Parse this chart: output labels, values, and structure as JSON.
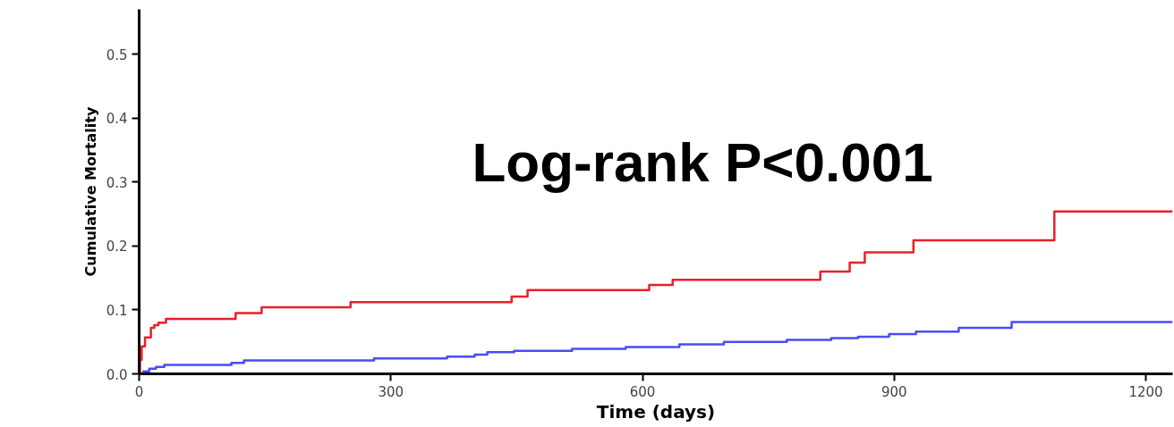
{
  "chart_data": {
    "type": "step",
    "xlabel": "Time (days)",
    "ylabel": "Cumulative Mortality",
    "annotations": [
      "Log-rank P<0.001"
    ],
    "xlim": [
      0,
      1232
    ],
    "ylim": [
      0,
      0.57
    ],
    "xticks": [
      0,
      300,
      600,
      900,
      1200
    ],
    "yticks": [
      {
        "value": 0,
        "label": "0.0"
      },
      {
        "value": 0.1,
        "label": "0.1"
      },
      {
        "value": 0.2,
        "label": "0.2"
      },
      {
        "value": 0.3,
        "label": "0.3"
      },
      {
        "value": 0.4,
        "label": "0.4"
      },
      {
        "value": 0.5,
        "label": "0.5"
      }
    ],
    "grid": false,
    "series": [
      {
        "color": "#e8202a",
        "x": [
          0,
          1,
          3,
          7,
          14,
          18,
          23,
          32,
          115,
          146,
          252,
          444,
          463,
          608,
          636,
          812,
          847,
          865,
          923,
          1091,
          1232
        ],
        "values": [
          0,
          0.022,
          0.043,
          0.057,
          0.072,
          0.076,
          0.08,
          0.086,
          0.095,
          0.104,
          0.112,
          0.121,
          0.131,
          0.139,
          0.147,
          0.16,
          0.174,
          0.19,
          0.209,
          0.254,
          0.254
        ]
      },
      {
        "color": "#4a4cf5",
        "x": [
          0,
          5,
          12,
          20,
          30,
          110,
          125,
          280,
          367,
          400,
          415,
          447,
          516,
          580,
          644,
          697,
          772,
          825,
          857,
          894,
          926,
          977,
          1040,
          1232
        ],
        "values": [
          0,
          0.004,
          0.008,
          0.011,
          0.014,
          0.017,
          0.021,
          0.024,
          0.027,
          0.03,
          0.034,
          0.036,
          0.039,
          0.042,
          0.046,
          0.05,
          0.053,
          0.056,
          0.058,
          0.062,
          0.066,
          0.072,
          0.081,
          0.081
        ]
      }
    ]
  }
}
